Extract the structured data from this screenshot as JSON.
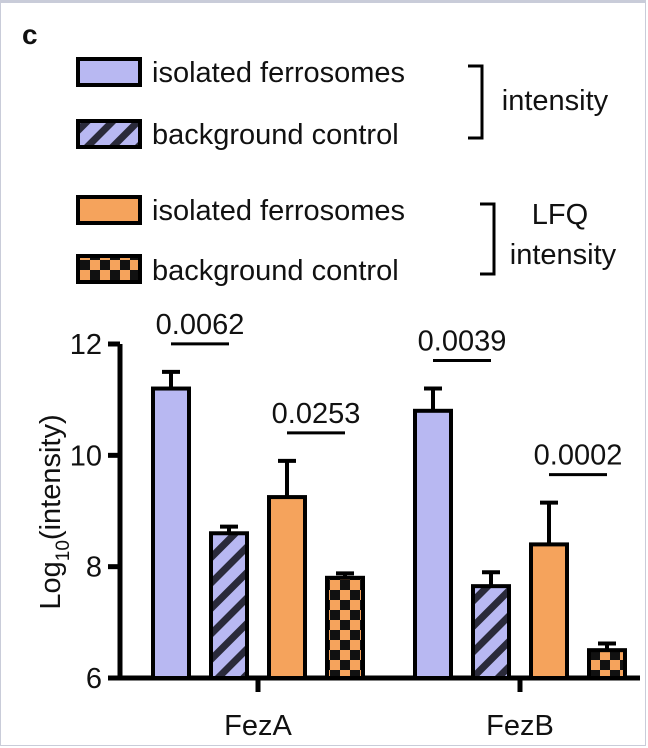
{
  "panel_label": "c",
  "legend": {
    "items": [
      {
        "label": "isolated ferrosomes",
        "fill": "#b8b8f2",
        "pattern": "solid"
      },
      {
        "label": "background control",
        "fill": "#b8b8f2",
        "pattern": "hatch"
      },
      {
        "label": "isolated ferrosomes",
        "fill": "#f5a35c",
        "pattern": "solid"
      },
      {
        "label": "background control",
        "fill": "#f5a35c",
        "pattern": "checker"
      }
    ],
    "group_labels": [
      {
        "lines": [
          "intensity"
        ]
      },
      {
        "lines": [
          "LFQ",
          "intensity"
        ]
      }
    ]
  },
  "chart_data": {
    "type": "bar",
    "categories": [
      "FezA",
      "FezB"
    ],
    "ylabel_main": "Log",
    "ylabel_sub": "10",
    "ylabel_rest": "(intensity)",
    "ylim": [
      6,
      12
    ],
    "yticks": [
      "6",
      "8",
      "10",
      "12"
    ],
    "colors": {
      "purple": "#b8b8f2",
      "orange": "#f5a35c",
      "edge": "#000000"
    },
    "series": [
      {
        "values": [
          11.2,
          10.8
        ],
        "errors": [
          0.3,
          0.4
        ],
        "fill": "#b8b8f2",
        "pattern": "solid"
      },
      {
        "values": [
          8.6,
          7.65
        ],
        "errors": [
          0.12,
          0.25
        ],
        "fill": "#b8b8f2",
        "pattern": "hatch"
      },
      {
        "values": [
          9.25,
          8.4
        ],
        "errors": [
          0.65,
          0.75
        ],
        "fill": "#f5a35c",
        "pattern": "solid"
      },
      {
        "values": [
          7.8,
          6.5
        ],
        "errors": [
          0.08,
          0.12
        ],
        "fill": "#f5a35c",
        "pattern": "checker"
      }
    ],
    "significance": [
      {
        "category": 0,
        "from_series": 0,
        "to_series": 1,
        "label": "0.0062"
      },
      {
        "category": 0,
        "from_series": 2,
        "to_series": 3,
        "label": "0.0253"
      },
      {
        "category": 1,
        "from_series": 0,
        "to_series": 1,
        "label": "0.0039"
      },
      {
        "category": 1,
        "from_series": 2,
        "to_series": 3,
        "label": "0.0002"
      }
    ]
  }
}
